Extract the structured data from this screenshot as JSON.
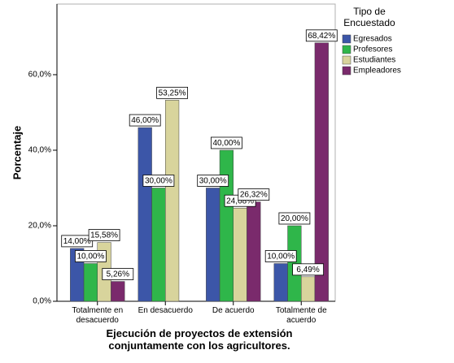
{
  "chart_data": {
    "type": "bar",
    "x_label": "Ejecución de proyectos de extensión conjuntamente con los agricultores.",
    "y_label": "Porcentaje",
    "legend_title": "Tipo de Encuestado",
    "legend_position": "right",
    "categories": [
      "Totalmente en desacuerdo",
      "En desacuerdo",
      "De acuerdo",
      "Totalmente de acuerdo"
    ],
    "series": [
      {
        "name": "Egresados",
        "color": "#3c56a8",
        "values": [
          14.0,
          46.0,
          30.0,
          10.0
        ],
        "value_labels": [
          "14,00%",
          "46,00%",
          "30,00%",
          "10,00%"
        ]
      },
      {
        "name": "Profesores",
        "color": "#2fb64a",
        "values": [
          10.0,
          30.0,
          40.0,
          20.0
        ],
        "value_labels": [
          "10,00%",
          "30,00%",
          "40,00%",
          "20,00%"
        ]
      },
      {
        "name": "Estudiantes",
        "color": "#d8d49c",
        "values": [
          15.58,
          53.25,
          24.68,
          6.49
        ],
        "value_labels": [
          "15,58%",
          "53,25%",
          "24,68%",
          "6,49%"
        ]
      },
      {
        "name": "Empleadores",
        "color": "#7a2a6c",
        "values": [
          5.26,
          null,
          26.32,
          68.42
        ],
        "value_labels": [
          "5,26%",
          null,
          "26,32%",
          "68,42%"
        ]
      }
    ],
    "ylim": [
      0,
      78.7
    ],
    "yticks": [
      {
        "value": 0,
        "label": "0,0%"
      },
      {
        "value": 20,
        "label": "20,0%"
      },
      {
        "value": 40,
        "label": "40,0%"
      },
      {
        "value": 60,
        "label": "60,0%"
      }
    ],
    "grid": false
  }
}
